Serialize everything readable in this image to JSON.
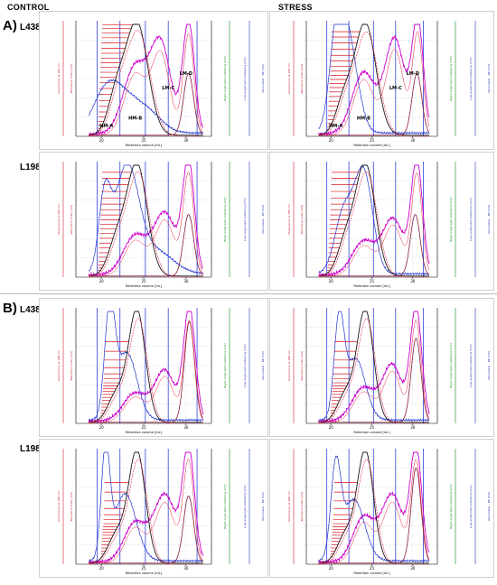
{
  "columns": [
    "CONTROL",
    "STRESS"
  ],
  "sections": [
    {
      "label": "A)",
      "rows": [
        "L438",
        "L198"
      ]
    },
    {
      "label": "B)",
      "rows": [
        "L438",
        "L198"
      ]
    }
  ],
  "chart_data": [
    {
      "type": "line",
      "section": "A",
      "row": "L438",
      "condition": "CONTROL",
      "xlabel": "Retention volume [mL]",
      "x_ticks": [
        "20",
        "25",
        "30"
      ],
      "ylabel_left": "Refractive index [mV]",
      "ylabel_left2": "Absorbance at 280 nm",
      "ylabel_right": "Right angle light scattering [mV]",
      "ylabel_right2": "Low angle light scattering [mV]",
      "ylabel_right3": "Viscometer - DP [mV]",
      "peak_labels": [
        "HM-A",
        "HM-B",
        "LM-C",
        "LM-D"
      ]
    },
    {
      "type": "line",
      "section": "A",
      "row": "L438",
      "condition": "STRESS",
      "xlabel": "Retention volume [mL]",
      "x_ticks": [
        "20",
        "25",
        "30"
      ],
      "ylabel_left": "Refractive index [mV]",
      "ylabel_left2": "Absorbance at 280 nm",
      "ylabel_right": "Right angle light scattering [mV]",
      "ylabel_right2": "Low angle light scattering [mV]",
      "ylabel_right3": "Viscometer - DP [mV]",
      "peak_labels": [
        "HM-A",
        "HM-B",
        "LM-C",
        "LM-D"
      ]
    },
    {
      "type": "line",
      "section": "A",
      "row": "L198",
      "condition": "CONTROL",
      "xlabel": "Retention volume [mL]",
      "x_ticks": [
        "20",
        "25",
        "30"
      ],
      "ylabel_left": "Refractive index [mV]",
      "ylabel_left2": "Absorbance at 280 nm",
      "ylabel_right": "Right angle light scattering [mV]",
      "ylabel_right2": "Low angle light scattering [mV]",
      "ylabel_right3": "Viscometer - DP [mV]",
      "peak_labels": []
    },
    {
      "type": "line",
      "section": "A",
      "row": "L198",
      "condition": "STRESS",
      "xlabel": "Retention volume [mL]",
      "x_ticks": [
        "20",
        "25",
        "30"
      ],
      "ylabel_left": "Refractive index [mV]",
      "ylabel_left2": "Absorbance at 280 nm",
      "ylabel_right": "Right angle light scattering [mV]",
      "ylabel_right2": "Low angle light scattering [mV]",
      "ylabel_right3": "Viscometer - DP [mV]",
      "peak_labels": []
    },
    {
      "type": "line",
      "section": "B",
      "row": "L438",
      "condition": "CONTROL",
      "xlabel": "Retention volume [mL]",
      "x_ticks": [
        "20",
        "25",
        "30"
      ],
      "ylabel_left": "Refractive index [mV]",
      "ylabel_left2": "Absorbance at 280 nm",
      "ylabel_right": "Right angle light scattering [mV]",
      "ylabel_right2": "Low angle light scattering [mV]",
      "ylabel_right3": "Viscometer - DP [mV]",
      "peak_labels": []
    },
    {
      "type": "line",
      "section": "B",
      "row": "L438",
      "condition": "STRESS",
      "xlabel": "Retention volume [mL]",
      "x_ticks": [
        "20",
        "25",
        "30"
      ],
      "ylabel_left": "Refractive index [mV]",
      "ylabel_left2": "Absorbance at 280 nm",
      "ylabel_right": "Right angle light scattering [mV]",
      "ylabel_right2": "Low angle light scattering [mV]",
      "ylabel_right3": "Viscometer - DP [mV]",
      "peak_labels": []
    },
    {
      "type": "line",
      "section": "B",
      "row": "L198",
      "condition": "CONTROL",
      "xlabel": "Retention volume [mL]",
      "x_ticks": [
        "20",
        "25",
        "30"
      ],
      "ylabel_left": "Refractive index [mV]",
      "ylabel_left2": "Absorbance at 280 nm",
      "ylabel_right": "Right angle light scattering [mV]",
      "ylabel_right2": "Low angle light scattering [mV]",
      "ylabel_right3": "Viscometer - DP [mV]",
      "peak_labels": []
    },
    {
      "type": "line",
      "section": "B",
      "row": "L198",
      "condition": "STRESS",
      "xlabel": "Retention volume [mL]",
      "x_ticks": [
        "20",
        "25",
        "30"
      ],
      "ylabel_left": "Refractive index [mV]",
      "ylabel_left2": "Absorbance at 280 nm",
      "ylabel_right": "Right angle light scattering [mV]",
      "ylabel_right2": "Low angle light scattering [mV]",
      "ylabel_right3": "Viscometer - DP [mV]",
      "peak_labels": []
    }
  ],
  "colors": {
    "refractive_index": "#e8223b",
    "uv_absorbance": "#cc00cc",
    "right_angle_ls": "#1a1a1a",
    "low_angle_ls": "#2233cc",
    "viscometer": "#8a1b3a",
    "fraction_hatch": "#d8141e",
    "marker_lines": "#3344dd",
    "gridline": "#b7c6ee",
    "axis_left_text": "#cc2233",
    "axis_right_green": "#118811",
    "axis_right_blue": "#2233aa"
  }
}
